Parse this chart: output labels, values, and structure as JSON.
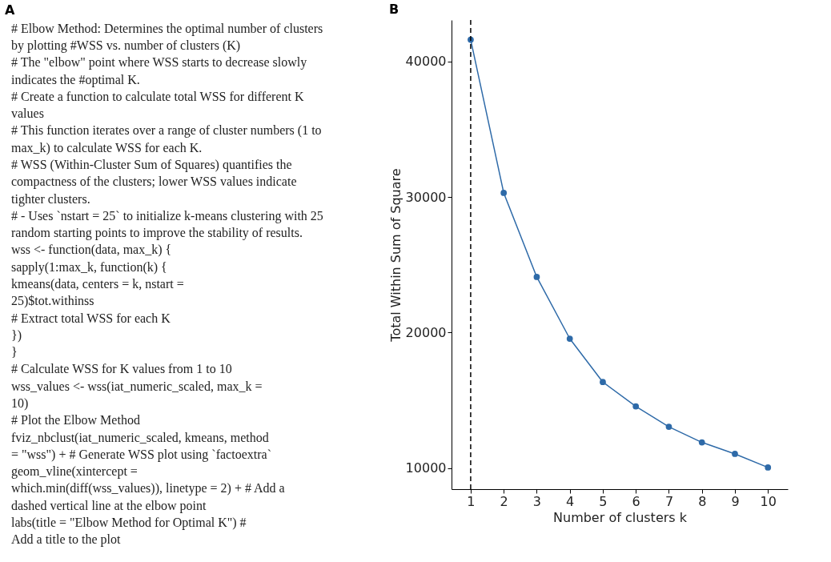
{
  "chart_data": [
    {
      "type": "other",
      "title": "A",
      "annotations": [
        "# Elbow Method: Determines the optimal number of clusters",
        "by plotting #WSS vs. number of clusters (K)",
        "# The \"elbow\" point where WSS starts to decrease slowly",
        "indicates the #optimal K.",
        "# Create a function to calculate total WSS for different K",
        "values",
        "# This function iterates over a range of cluster numbers (1 to",
        "max_k) to calculate WSS for each K.",
        "# WSS (Within-Cluster Sum of Squares) quantifies the",
        "compactness of the clusters; lower WSS values indicate",
        "tighter clusters.",
        "# - Uses `nstart = 25` to initialize k-means clustering with 25",
        "random starting points to improve the stability of results.",
        "wss <- function(data, max_k) {",
        "  sapply(1:max_k, function(k) {",
        "    kmeans(data, centers = k, nstart =",
        "25)$tot.withinss",
        "# Extract total WSS for each K",
        "  })",
        "}",
        "# Calculate WSS for K values from 1 to 10",
        "wss_values <- wss(iat_numeric_scaled, max_k =",
        "10)",
        "# Plot the Elbow Method",
        "fviz_nbclust(iat_numeric_scaled, kmeans, method",
        "= \"wss\") + # Generate WSS plot using `factoextra`",
        "  geom_vline(xintercept =",
        "which.min(diff(wss_values)), linetype = 2) + # Add a",
        "dashed vertical line at the elbow point",
        "  labs(title = \"Elbow Method for Optimal K\") #",
        "Add a title to the plot"
      ]
    },
    {
      "type": "line",
      "title": "B",
      "xlabel": "Number of clusters k",
      "ylabel": "Total Within Sum of Square",
      "x": [
        1,
        2,
        3,
        4,
        5,
        6,
        7,
        8,
        9,
        10
      ],
      "series": [
        {
          "color": "#2e6aa8",
          "values": [
            41600,
            30300,
            24100,
            19550,
            16350,
            14550,
            13050,
            11900,
            11050,
            10050
          ]
        }
      ],
      "xlim": [
        0.42,
        10.6
      ],
      "xticks": [
        1,
        2,
        3,
        4,
        5,
        6,
        7,
        8,
        9,
        10
      ],
      "ylim": [
        8450,
        43050
      ],
      "yticks": [
        10000,
        20000,
        30000,
        40000
      ],
      "ref_lines": [
        {
          "axis": "x",
          "value": 1,
          "color": "#000000",
          "line_style": "dashed"
        }
      ],
      "marker": "circle",
      "line_style": "solid",
      "grid": false
    }
  ]
}
